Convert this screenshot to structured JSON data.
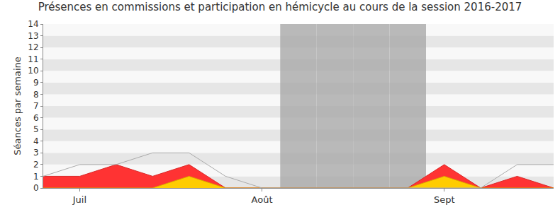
{
  "chart_data": {
    "type": "area",
    "title": "Présences en commissions et participation en hémicycle au cours de la session 2016-2017",
    "y_label": "Séances par semaine",
    "categories": [
      null,
      "Juil",
      null,
      null,
      null,
      null,
      "Août",
      null,
      null,
      null,
      null,
      "Sept",
      null,
      null,
      null
    ],
    "series": [
      {
        "type": "bar",
        "color": "#aaaaaa",
        "values": [
          null,
          null,
          null,
          null,
          null,
          null,
          null,
          14,
          14,
          14,
          14,
          null,
          null,
          null,
          null
        ]
      },
      {
        "type": "area",
        "color": "#ff3333",
        "values": [
          1,
          1,
          2,
          1,
          2,
          0,
          0,
          0,
          0,
          0,
          0,
          2,
          0,
          1,
          0
        ]
      },
      {
        "type": "area",
        "color": "#ffcc00",
        "values": [
          0,
          0,
          0,
          0,
          1,
          0,
          0,
          0,
          0,
          0,
          0,
          1,
          0,
          0,
          0
        ]
      },
      {
        "type": "line",
        "color": "#aaaaaa",
        "values": [
          1,
          2,
          2,
          3,
          3,
          1,
          0,
          0,
          0,
          0,
          0,
          0,
          0,
          2,
          2
        ]
      }
    ],
    "ylim": [
      0,
      14
    ],
    "yticks": [
      0,
      1,
      2,
      3,
      4,
      5,
      6,
      7,
      8,
      9,
      10,
      11,
      12,
      13,
      14
    ],
    "grid": true
  }
}
